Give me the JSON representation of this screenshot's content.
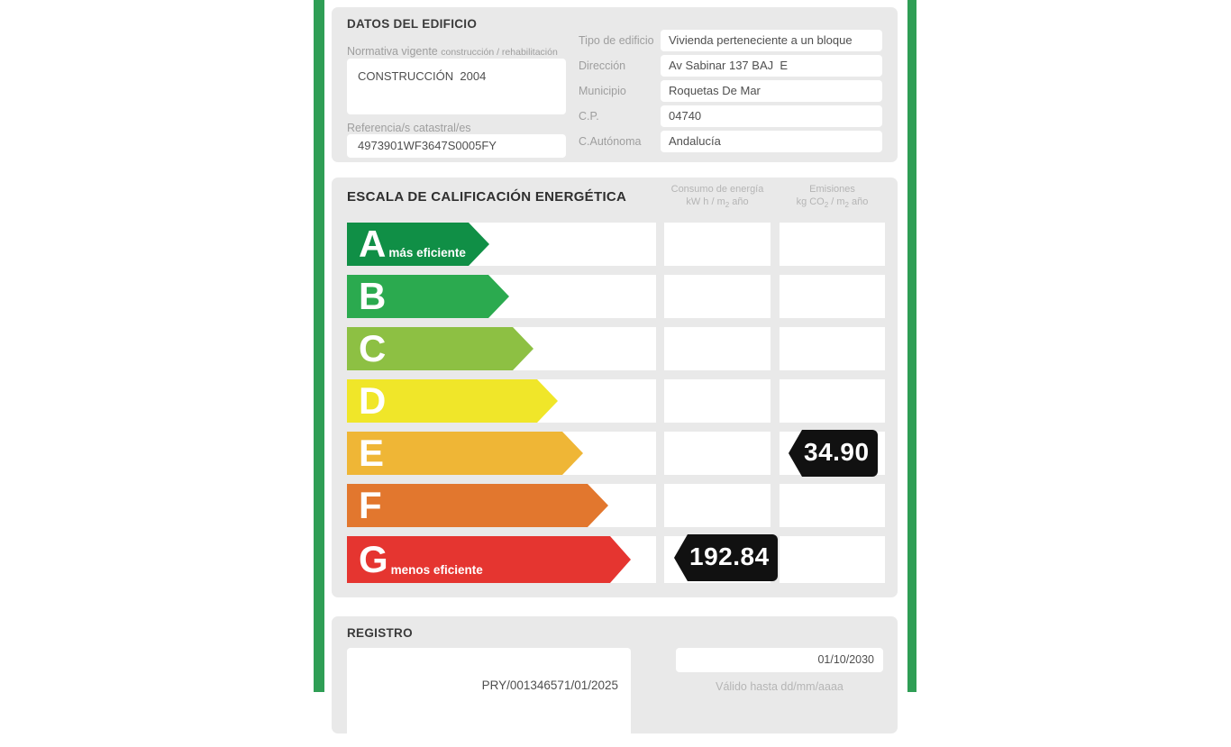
{
  "colors": {
    "frame_green": "#2f9e55",
    "panel_bg": "#e9e9e9",
    "rating_a": "#108f46",
    "rating_b": "#2baa4f",
    "rating_c": "#8dc043",
    "rating_d": "#f0e629",
    "rating_e": "#efb636",
    "rating_f": "#e2772e",
    "rating_g": "#e53530",
    "value_tag_bg": "#111111"
  },
  "building": {
    "title": "DATOS DEL EDIFICIO",
    "normativa_label": "Normativa vigente",
    "normativa_sublabel": "construcción / rehabilitación",
    "normativa_value": "CONSTRUCCIÓN  2004",
    "referencia_label": "Referencia/s catastral/es",
    "referencia_value": "4973901WF3647S0005FY",
    "fields": [
      {
        "label": "Tipo de edificio",
        "value": "Vivienda perteneciente a un bloque"
      },
      {
        "label": "Dirección",
        "value": "Av Sabinar 137 BAJ  E"
      },
      {
        "label": "Municipio",
        "value": "Roquetas De Mar"
      },
      {
        "label": "C.P.",
        "value": "04740"
      },
      {
        "label": "C.Autónoma",
        "value": "Andalucía"
      }
    ]
  },
  "scale": {
    "title": "ESCALA DE CALIFICACIÓN ENERGÉTICA",
    "consumo_header": {
      "line1": "Consumo de energía",
      "unit_pre": "kW h / m",
      "unit_sub": "2",
      "unit_post": " año"
    },
    "emisiones_header": {
      "line1": "Emisiones",
      "u1": "kg CO",
      "s1": "2",
      "u2": " / m",
      "s2": "2",
      "u3": " año"
    },
    "rows": [
      {
        "letter": "A",
        "note": "más eficiente"
      },
      {
        "letter": "B"
      },
      {
        "letter": "C"
      },
      {
        "letter": "D"
      },
      {
        "letter": "E",
        "emisiones": "34.90"
      },
      {
        "letter": "F"
      },
      {
        "letter": "G",
        "note": "menos eficiente",
        "consumo": "192.84"
      }
    ]
  },
  "registro": {
    "title": "REGISTRO",
    "number": "PRY/001346571/01/2025",
    "valid_until_value": "01/10/2030",
    "valid_until_label": "Válido hasta dd/mm/aaaa"
  }
}
